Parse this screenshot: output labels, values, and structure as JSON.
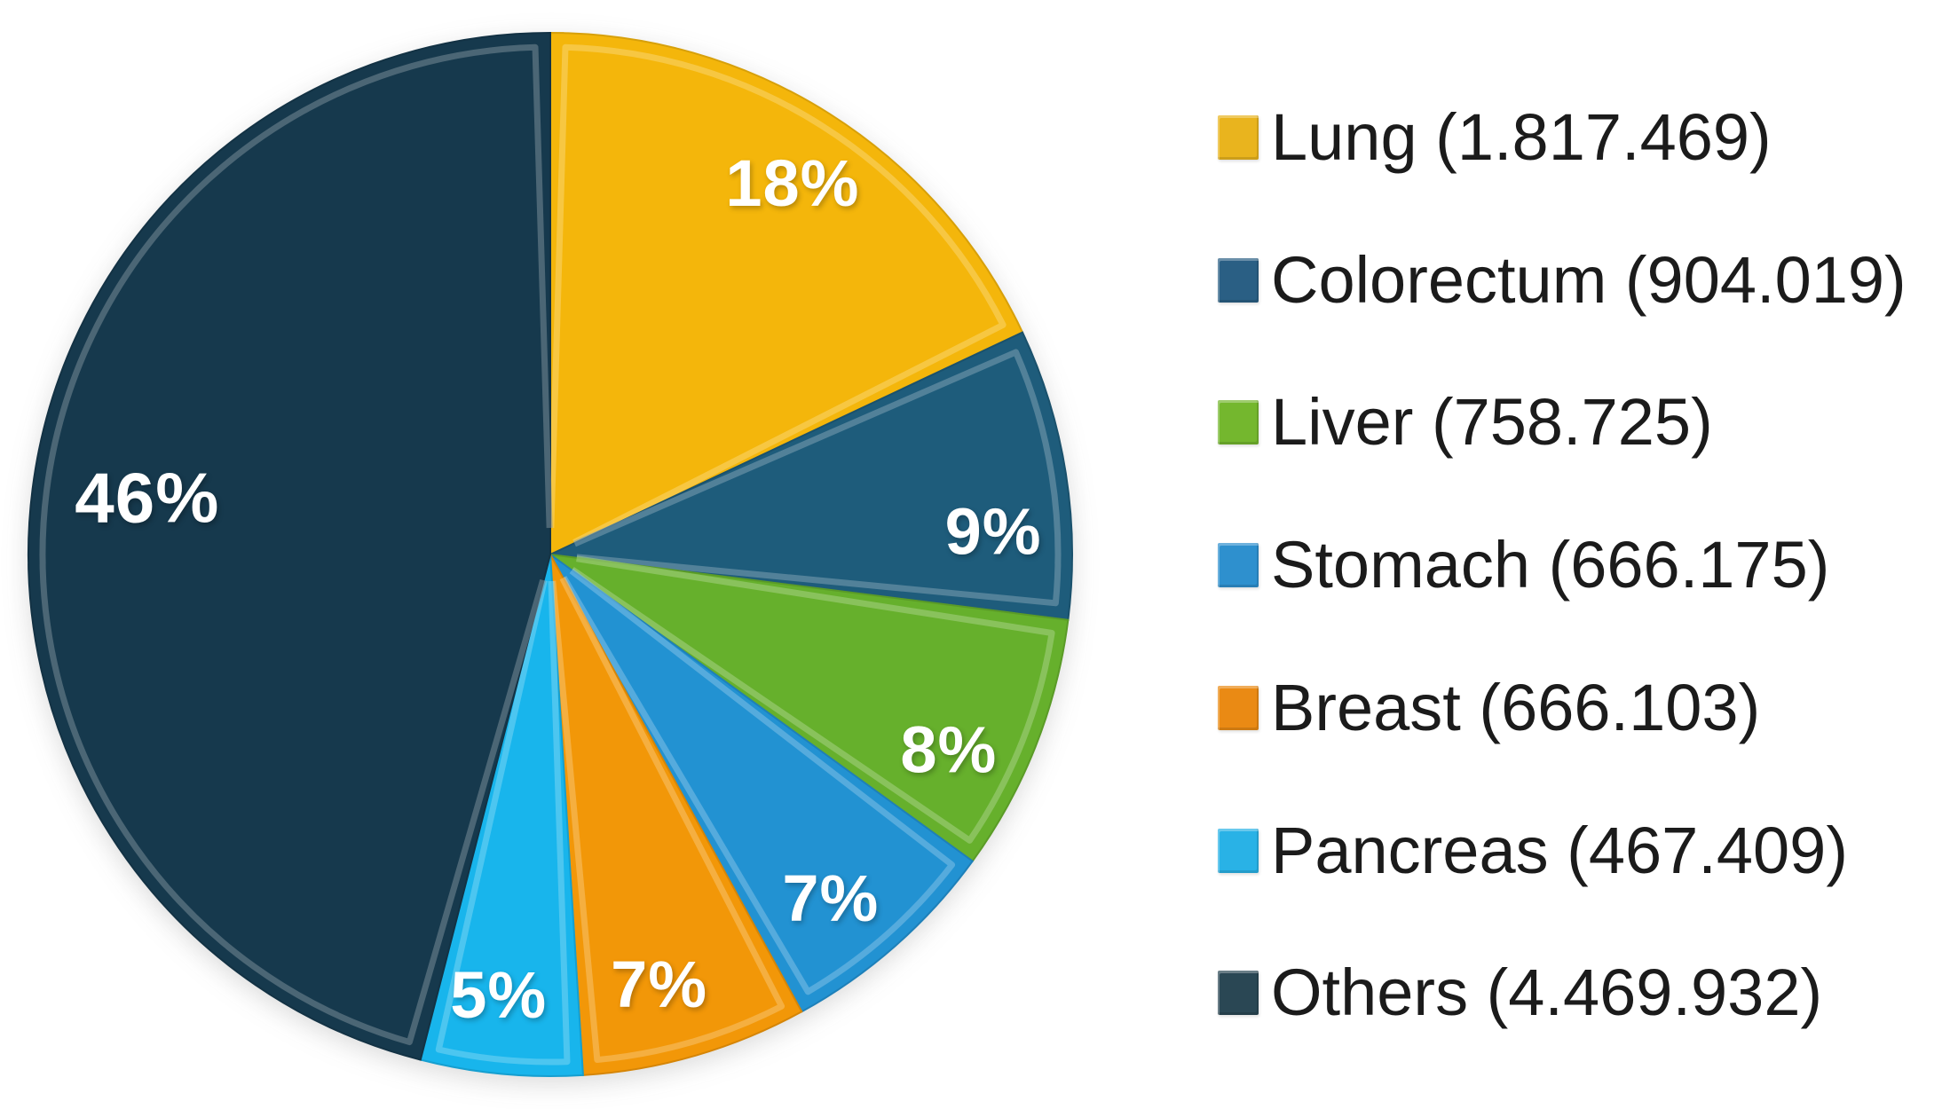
{
  "chart_data": {
    "type": "pie",
    "title": "",
    "legend_position": "right",
    "start_angle_deg": 0,
    "direction": "clockwise",
    "donut": false,
    "background": "#ffffff",
    "label_text_color": "#ffffff",
    "legend_text_color": "#1b1b1b",
    "legend_format": "{label} ({count})",
    "slice_label_format": "{percent}%",
    "categories": [
      "Lung",
      "Colorectum",
      "Liver",
      "Stomach",
      "Breast",
      "Pancreas",
      "Others"
    ],
    "values": [
      18,
      9,
      8,
      7,
      7,
      5,
      46
    ],
    "slices": [
      {
        "label": "Lung",
        "count": "1.817.469",
        "percent": 18,
        "percent_label": "18%",
        "color": "#F4B60B",
        "legend_color": "#E9B41E"
      },
      {
        "label": "Colorectum",
        "count": "904.019",
        "percent": 9,
        "percent_label": "9%",
        "color": "#1E5C7B",
        "legend_color": "#2A5F84"
      },
      {
        "label": "Liver",
        "count": "758.725",
        "percent": 8,
        "percent_label": "8%",
        "color": "#66B02C",
        "legend_color": "#74B72E"
      },
      {
        "label": "Stomach",
        "count": "666.175",
        "percent": 7,
        "percent_label": "7%",
        "color": "#2292D2",
        "legend_color": "#2E90CE"
      },
      {
        "label": "Breast",
        "count": "666.103",
        "percent": 7,
        "percent_label": "7%",
        "color": "#F29708",
        "legend_color": "#EA8A14"
      },
      {
        "label": "Pancreas",
        "count": "467.409",
        "percent": 5,
        "percent_label": "5%",
        "color": "#18B5EC",
        "legend_color": "#29B2E6"
      },
      {
        "label": "Others",
        "count": "4.469.932",
        "percent": 46,
        "percent_label": "46%",
        "color": "#16394D",
        "legend_color": "#2A4754"
      }
    ]
  }
}
